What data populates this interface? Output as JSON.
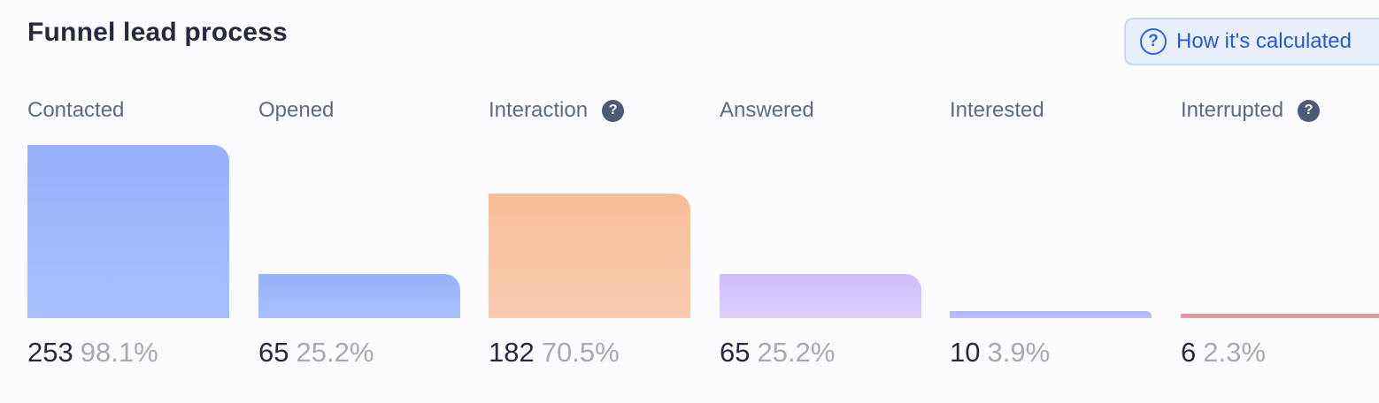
{
  "title": "Funnel lead process",
  "help_button": {
    "label": "How it's calculated",
    "icon": "question-circle-icon",
    "color": "#2f63e6"
  },
  "chart_data": {
    "type": "bar",
    "categories": [
      "Contacted",
      "Opened",
      "Interaction",
      "Answered",
      "Interested",
      "Interrupted"
    ],
    "values": [
      253,
      65,
      182,
      65,
      10,
      6
    ],
    "percent_labels": [
      "98.1%",
      "25.2%",
      "70.5%",
      "25.2%",
      "3.9%",
      "2.3%"
    ],
    "info_icon": [
      false,
      false,
      true,
      false,
      false,
      true
    ],
    "colors": [
      [
        "#97b2fb",
        "#a6c0fd"
      ],
      [
        "#97b2fb",
        "#a6c0fd"
      ],
      [
        "#f7bd96",
        "#facbb0"
      ],
      [
        "#cfbdfc",
        "#ddd0fa"
      ],
      [
        "#aeb8fb",
        "#b7c0fb"
      ],
      [
        "#e7909f",
        "#ea9aa8"
      ]
    ],
    "ylim": [
      0,
      253
    ],
    "grid": false,
    "legend": "none"
  }
}
